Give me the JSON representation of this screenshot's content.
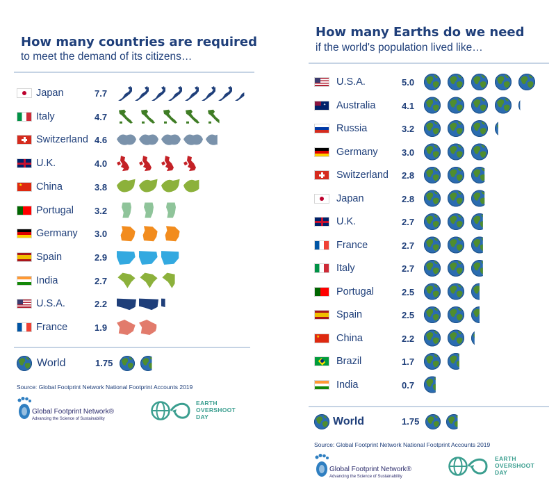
{
  "colors": {
    "title": "#1f3f7a",
    "rule": "#c5d3e4",
    "earth_ocean": "#2b6cb0",
    "earth_land": "#4f8d2e",
    "eod_teal": "#3a9e8f"
  },
  "left": {
    "title": "How many countries are required",
    "subtitle": "to meet the demand of its citizens…",
    "world_label": "World",
    "world_value_text": "1.75",
    "source": "Source: Global Footprint Network National Footprint Accounts 2019",
    "gfn_name": "Global Footprint Network®",
    "gfn_tag": "Advancing the Science of Sustainability",
    "eod_line1": "EARTH",
    "eod_line2": "OVERSHOOT",
    "eod_line3": "DAY"
  },
  "right": {
    "title": "How many Earths do we need",
    "subtitle": "if the world's population lived like…",
    "world_label": "World",
    "world_value_text": "1.75",
    "source": "Source: Global Footprint Network National Footprint Accounts 2019",
    "gfn_name": "Global Footprint Network®",
    "gfn_tag": "Advancing the Science of Sustainability",
    "eod_line1": "EARTH",
    "eod_line2": "OVERSHOOT",
    "eod_line3": "DAY"
  },
  "chart_data": [
    {
      "type": "bar",
      "title": "How many countries are required",
      "subtitle": "to meet the demand of its citizens…",
      "categories": [
        "Japan",
        "Italy",
        "Switzerland",
        "U.K.",
        "China",
        "Portugal",
        "Germany",
        "Spain",
        "India",
        "U.S.A.",
        "France"
      ],
      "values": [
        7.7,
        4.7,
        4.6,
        4.0,
        3.8,
        3.2,
        3.0,
        2.9,
        2.7,
        2.2,
        1.9
      ],
      "value_labels": [
        "7.7",
        "4.7",
        "4.6",
        "4.0",
        "3.8",
        "3.2",
        "3.0",
        "2.9",
        "2.7",
        "2.2",
        "1.9"
      ],
      "icon_colors": [
        "#1f3f7a",
        "#3f7d25",
        "#7a92ab",
        "#c42126",
        "#8cb13b",
        "#8fc49a",
        "#f28c1e",
        "#33a9e0",
        "#8cb13b",
        "#1f3f7a",
        "#e27b6c"
      ],
      "world": {
        "label": "World",
        "value": 1.75
      }
    },
    {
      "type": "bar",
      "title": "How many Earths do we need",
      "subtitle": "if the world's population lived like…",
      "categories": [
        "U.S.A.",
        "Australia",
        "Russia",
        "Germany",
        "Switzerland",
        "Japan",
        "U.K.",
        "France",
        "Italy",
        "Portugal",
        "Spain",
        "China",
        "Brazil",
        "India"
      ],
      "values": [
        5.0,
        4.1,
        3.2,
        3.0,
        2.8,
        2.8,
        2.7,
        2.7,
        2.7,
        2.5,
        2.5,
        2.2,
        1.7,
        0.7
      ],
      "value_labels": [
        "5.0",
        "4.1",
        "3.2",
        "3.0",
        "2.8",
        "2.8",
        "2.7",
        "2.7",
        "2.7",
        "2.5",
        "2.5",
        "2.2",
        "1.7",
        "0.7"
      ],
      "world": {
        "label": "World",
        "value": 1.75
      }
    }
  ]
}
